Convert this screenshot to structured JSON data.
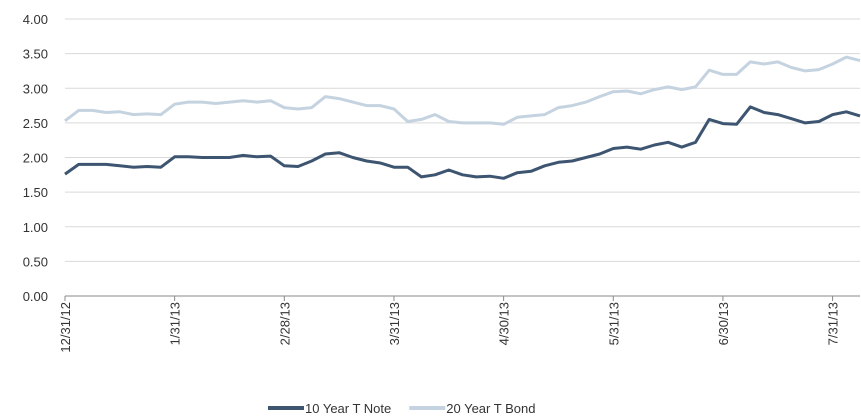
{
  "chart_data": {
    "type": "line",
    "categories": [
      "12/31/12",
      null,
      null,
      null,
      null,
      null,
      null,
      null,
      "1/31/13",
      null,
      null,
      null,
      null,
      null,
      null,
      null,
      "2/28/13",
      null,
      null,
      null,
      null,
      null,
      null,
      null,
      "3/31/13",
      null,
      null,
      null,
      null,
      null,
      null,
      null,
      "4/30/13",
      null,
      null,
      null,
      null,
      null,
      null,
      null,
      "5/31/13",
      null,
      null,
      null,
      null,
      null,
      null,
      null,
      "6/30/13",
      null,
      null,
      null,
      null,
      null,
      null,
      null,
      "7/31/13",
      null,
      null
    ],
    "series": [
      {
        "name": "10 Year T Note",
        "color": "#3d5570",
        "values": [
          1.76,
          1.9,
          1.9,
          1.9,
          1.88,
          1.86,
          1.87,
          1.86,
          2.01,
          2.01,
          2.0,
          2.0,
          2.0,
          2.03,
          2.01,
          2.02,
          1.88,
          1.87,
          1.95,
          2.05,
          2.07,
          2.0,
          1.95,
          1.92,
          1.86,
          1.86,
          1.72,
          1.75,
          1.82,
          1.75,
          1.72,
          1.73,
          1.7,
          1.78,
          1.8,
          1.88,
          1.93,
          1.95,
          2.0,
          2.05,
          2.13,
          2.15,
          2.12,
          2.18,
          2.22,
          2.15,
          2.22,
          2.55,
          2.49,
          2.48,
          2.73,
          2.65,
          2.62,
          2.56,
          2.5,
          2.52,
          2.62,
          2.66,
          2.6
        ]
      },
      {
        "name": "20 Year T Bond",
        "color": "#c5d3e0",
        "values": [
          2.53,
          2.68,
          2.68,
          2.65,
          2.66,
          2.62,
          2.63,
          2.62,
          2.77,
          2.8,
          2.8,
          2.78,
          2.8,
          2.82,
          2.8,
          2.82,
          2.72,
          2.7,
          2.72,
          2.88,
          2.85,
          2.8,
          2.75,
          2.75,
          2.7,
          2.52,
          2.55,
          2.62,
          2.52,
          2.5,
          2.5,
          2.5,
          2.48,
          2.58,
          2.6,
          2.62,
          2.72,
          2.75,
          2.8,
          2.88,
          2.95,
          2.96,
          2.92,
          2.98,
          3.02,
          2.98,
          3.02,
          3.26,
          3.2,
          3.2,
          3.38,
          3.35,
          3.38,
          3.3,
          3.25,
          3.27,
          3.35,
          3.45,
          3.4
        ]
      }
    ],
    "ylim": [
      0,
      4
    ],
    "yticks": [
      {
        "value": 0,
        "label": "0.00"
      },
      {
        "value": 0.5,
        "label": "0.50"
      },
      {
        "value": 1,
        "label": "1.00"
      },
      {
        "value": 1.5,
        "label": "1.50"
      },
      {
        "value": 2,
        "label": "2.00"
      },
      {
        "value": 2.5,
        "label": "2.50"
      },
      {
        "value": 3,
        "label": "3.00"
      },
      {
        "value": 3.5,
        "label": "3.50"
      },
      {
        "value": 4,
        "label": "4.00"
      }
    ],
    "grid": true,
    "legend": "bottom"
  }
}
